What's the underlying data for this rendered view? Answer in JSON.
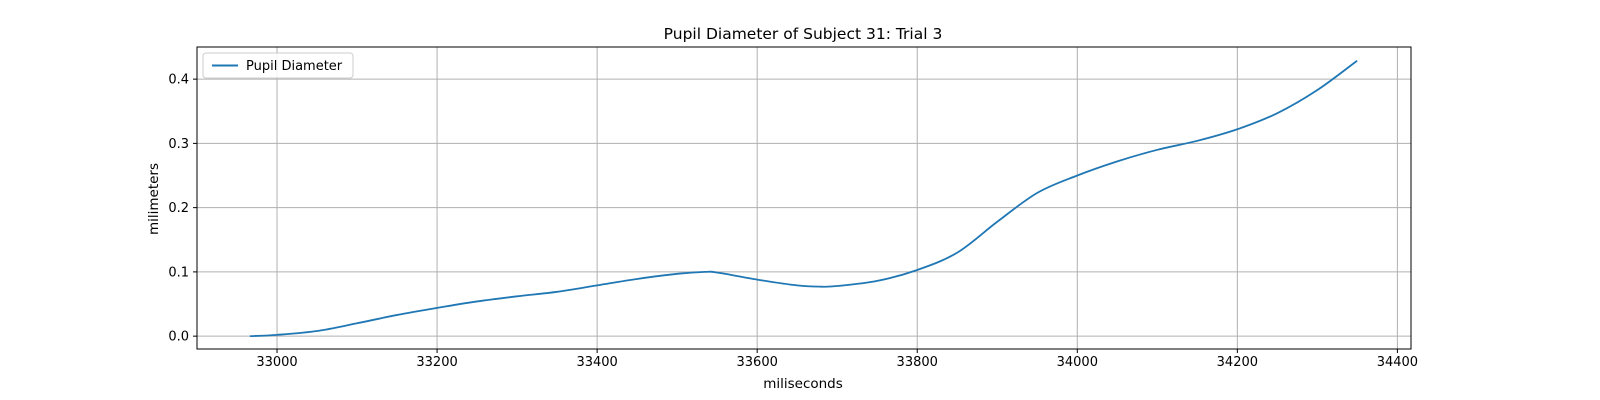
{
  "chart_data": {
    "type": "line",
    "title": "Pupil Diameter of Subject 31: Trial 3",
    "xlabel": "miliseconds",
    "ylabel": "milimeters",
    "xlim": [
      32900,
      34417
    ],
    "ylim": [
      -0.02,
      0.45
    ],
    "grid": true,
    "legend_position": "upper-left",
    "x_ticks": [
      33000,
      33200,
      33400,
      33600,
      33800,
      34000,
      34200,
      34400
    ],
    "x_tick_labels": [
      "33000",
      "33200",
      "33400",
      "33600",
      "33800",
      "34000",
      "34200",
      "34400"
    ],
    "y_ticks": [
      0.0,
      0.1,
      0.2,
      0.3,
      0.4
    ],
    "y_tick_labels": [
      "0.0",
      "0.1",
      "0.2",
      "0.3",
      "0.4"
    ],
    "series": [
      {
        "name": "Pupil Diameter",
        "color": "#1f77b4",
        "x": [
          32967,
          33000,
          33050,
          33100,
          33150,
          33200,
          33250,
          33300,
          33350,
          33400,
          33450,
          33500,
          33535,
          33550,
          33600,
          33650,
          33680,
          33700,
          33750,
          33800,
          33850,
          33900,
          33950,
          34000,
          34050,
          34100,
          34150,
          34200,
          34250,
          34300,
          34349
        ],
        "y": [
          0.0,
          0.002,
          0.008,
          0.02,
          0.033,
          0.044,
          0.054,
          0.062,
          0.069,
          0.079,
          0.089,
          0.097,
          0.1,
          0.099,
          0.088,
          0.079,
          0.077,
          0.078,
          0.086,
          0.103,
          0.13,
          0.178,
          0.223,
          0.25,
          0.272,
          0.29,
          0.304,
          0.322,
          0.347,
          0.383,
          0.428
        ]
      }
    ]
  }
}
